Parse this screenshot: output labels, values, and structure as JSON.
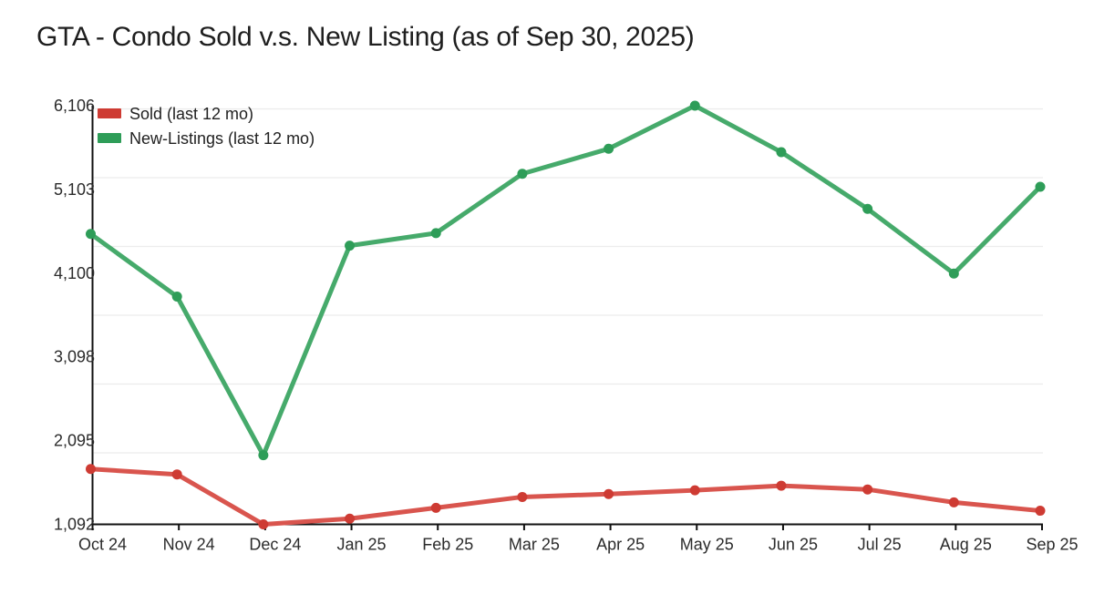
{
  "title": "GTA - Condo Sold v.s. New Listing (as of Sep 30, 2025)",
  "legend": [
    {
      "label": "Sold (last 12 mo)",
      "color": "#ce3b33"
    },
    {
      "label": "New-Listings (last 12 mo)",
      "color": "#2e9d58"
    }
  ],
  "chart_data": {
    "type": "line",
    "title": "GTA - Condo Sold v.s. New Listing (as of Sep 30, 2025)",
    "categories": [
      "Oct 24",
      "Nov 24",
      "Dec 24",
      "Jan 25",
      "Feb 25",
      "Mar 25",
      "Apr 25",
      "May 25",
      "Jun 25",
      "Jul 25",
      "Aug 25",
      "Sep 25"
    ],
    "series": [
      {
        "name": "Sold (last 12 mo)",
        "color": "#ce3b33",
        "line_color": "#d9554e",
        "values": [
          1755,
          1690,
          1092,
          1160,
          1290,
          1420,
          1455,
          1500,
          1555,
          1510,
          1355,
          1255
        ]
      },
      {
        "name": "New-Listings (last 12 mo)",
        "color": "#2e9d58",
        "line_color": "#46aa6b",
        "values": [
          4570,
          3820,
          1920,
          4430,
          4580,
          5290,
          5590,
          6106,
          5550,
          4870,
          4095,
          5135
        ]
      }
    ],
    "yticks": [
      "1,092",
      "2,095",
      "3,098",
      "4,100",
      "5,103",
      "6,106"
    ],
    "ytick_values": [
      1092,
      2095,
      3098,
      4100,
      5103,
      6106
    ],
    "ylim": [
      1092,
      6106
    ],
    "xlabel": "",
    "ylabel": "",
    "grid": true,
    "legend_position": "top-left"
  }
}
